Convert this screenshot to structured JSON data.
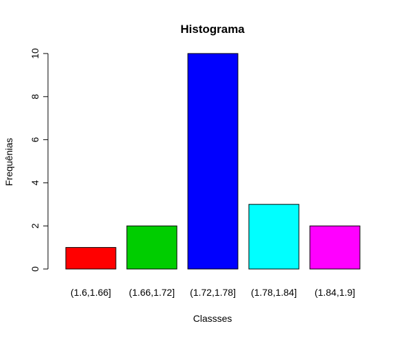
{
  "chart_data": {
    "type": "bar",
    "title": "Histograma",
    "xlabel": "Classses",
    "ylabel": "Frequênias",
    "categories": [
      "(1.6,1.66]",
      "(1.66,1.72]",
      "(1.72,1.78]",
      "(1.78,1.84]",
      "(1.84,1.9]"
    ],
    "values": [
      1,
      2,
      10,
      3,
      2
    ],
    "colors": [
      "#ff0000",
      "#00cd00",
      "#0000ff",
      "#00ffff",
      "#ff00ff"
    ],
    "ylim": [
      0,
      10
    ],
    "yticks": [
      0,
      2,
      4,
      6,
      8,
      10
    ],
    "grid": false,
    "legend": "none"
  }
}
